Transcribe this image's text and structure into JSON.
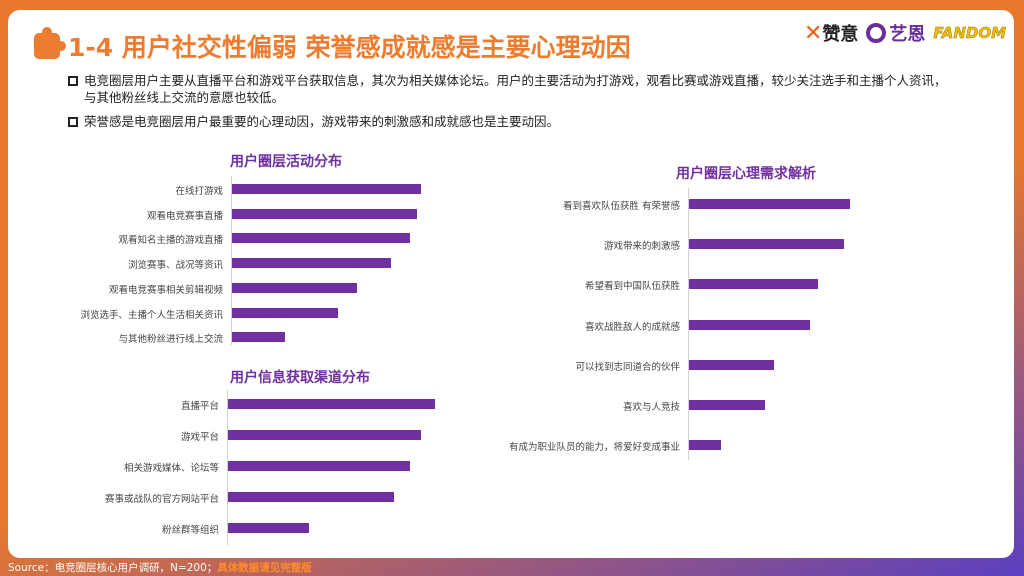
{
  "header": {
    "title": "1-4  用户社交性偏弱 荣誉感成就感是主要心理动因",
    "logos": [
      "赞意",
      "艺恩 endata",
      "FANDOM"
    ]
  },
  "bullets": [
    "电竞圈层用户主要从直播平台和游戏平台获取信息，其次为相关媒体论坛。用户的主要活动为打游戏，观看比赛或游戏直播，较少关注选手和主播个人资讯，与其他粉丝线上交流的意愿也较低。",
    "荣誉感是电竞圈层用户最重要的心理动因，游戏带来的刺激感和成就感也是主要动因。"
  ],
  "colors": {
    "bar": "#7030a0",
    "title": "#ec7c30"
  },
  "chart_data": [
    {
      "type": "bar",
      "orientation": "horizontal",
      "title": "用户圈层活动分布",
      "categories": [
        "在线打游戏",
        "观看电竞赛事直播",
        "观看知名主播的游戏直播",
        "浏览赛事、战况等资讯",
        "观看电竞赛事相关剪辑视频",
        "浏览选手、主播个人生活相关资讯",
        "与其他粉丝进行线上交流"
      ],
      "values": [
        100,
        98,
        94,
        84,
        66,
        56,
        28
      ]
    },
    {
      "type": "bar",
      "orientation": "horizontal",
      "title": "用户信息获取渠道分布",
      "categories": [
        "直播平台",
        "游戏平台",
        "相关游戏媒体、论坛等",
        "赛事或战队的官方网站平台",
        "粉丝群等组织"
      ],
      "values": [
        100,
        93,
        88,
        80,
        39
      ]
    },
    {
      "type": "bar",
      "orientation": "horizontal",
      "title": "用户圈层心理需求解析",
      "categories": [
        "看到喜欢队伍获胜 有荣誉感",
        "游戏带来的刺激感",
        "希望看到中国队伍获胜",
        "喜欢战胜敌人的成就感",
        "可以找到志同道合的伙伴",
        "喜欢与人竞技",
        "有成为职业队员的能力，将爱好变成事业"
      ],
      "values": [
        100,
        96,
        80,
        75,
        53,
        47,
        20
      ]
    }
  ],
  "footer": {
    "source": "Source：电竞圈层核心用户调研，N=200；",
    "note": "具体数据请见完整版"
  }
}
